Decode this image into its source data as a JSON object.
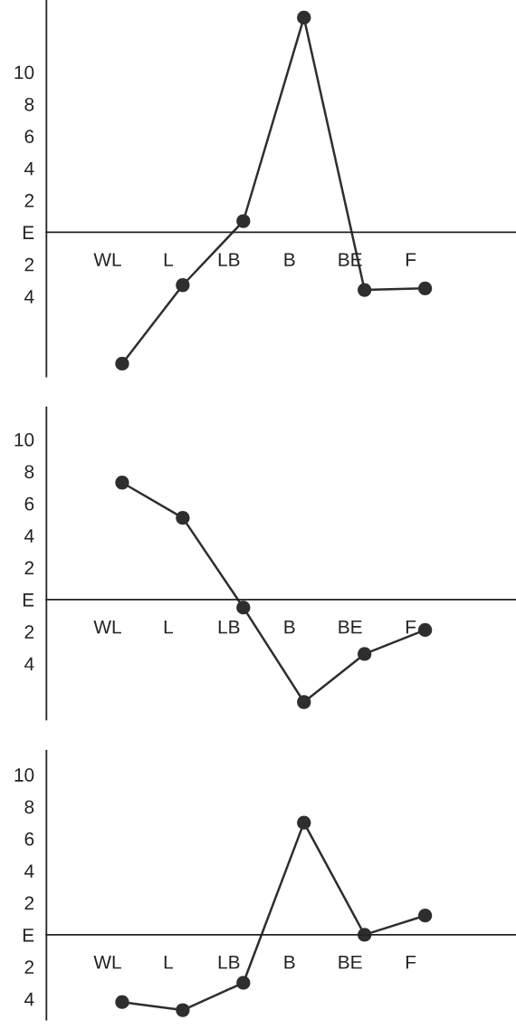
{
  "chart_data": [
    {
      "type": "line",
      "categories": [
        "WL",
        "L",
        "LB",
        "B",
        "BE",
        "F"
      ],
      "values": [
        -8.2,
        -3.3,
        0.7,
        13.4,
        -3.6,
        -3.5
      ],
      "color": "#2e2e2e",
      "marker": "circle",
      "line_style": "solid",
      "grid": false,
      "legend": false,
      "ylim": [
        -9,
        14.5
      ],
      "yticks": [
        10,
        8,
        6,
        4,
        2,
        {
          "value": 0,
          "label": "E"
        },
        {
          "value": -2,
          "label": "2"
        },
        {
          "value": -4,
          "label": "4"
        }
      ]
    },
    {
      "type": "line",
      "categories": [
        "WL",
        "L",
        "LB",
        "B",
        "BE",
        "F"
      ],
      "values": [
        7.3,
        5.1,
        -0.5,
        -6.4,
        -3.4,
        -1.9
      ],
      "color": "#2e2e2e",
      "marker": "circle",
      "line_style": "solid",
      "grid": false,
      "legend": false,
      "ylim": [
        -7.5,
        12
      ],
      "yticks": [
        10,
        8,
        6,
        4,
        2,
        {
          "value": 0,
          "label": "E"
        },
        {
          "value": -2,
          "label": "2"
        },
        {
          "value": -4,
          "label": "4"
        }
      ]
    },
    {
      "type": "line",
      "categories": [
        "WL",
        "L",
        "LB",
        "B",
        "BE",
        "F"
      ],
      "values": [
        -4.2,
        -4.7,
        -3.0,
        7.0,
        0.0,
        1.2
      ],
      "color": "#2e2e2e",
      "marker": "circle",
      "line_style": "solid",
      "grid": false,
      "legend": false,
      "ylim": [
        -5.3,
        11.5
      ],
      "yticks": [
        10,
        8,
        6,
        4,
        2,
        {
          "value": 0,
          "label": "E"
        },
        {
          "value": -2,
          "label": "2"
        },
        {
          "value": -4,
          "label": "4"
        }
      ]
    }
  ]
}
